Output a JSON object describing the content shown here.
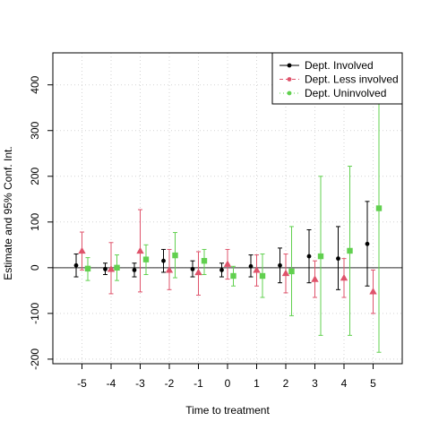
{
  "chart_data": {
    "type": "scatter",
    "title": "",
    "xlabel": "Time to treatment",
    "ylabel": "Estimate and 95% Conf. Int.",
    "xlim": [
      -6,
      6
    ],
    "ylim": [
      -210,
      470
    ],
    "xticks": [
      -5,
      -4,
      -3,
      -2,
      -1,
      0,
      1,
      2,
      3,
      4,
      5
    ],
    "yticks": [
      -200,
      -100,
      0,
      100,
      200,
      300,
      400
    ],
    "grid": true,
    "reference_line": 0,
    "legend_position": "top-right",
    "series": [
      {
        "name": "Dept. Involved",
        "color": "#000000",
        "marker": "circle",
        "offset": -0.2,
        "points": [
          {
            "x": -5,
            "y": 5,
            "lo": -20,
            "hi": 30
          },
          {
            "x": -4,
            "y": -3,
            "lo": -15,
            "hi": 10
          },
          {
            "x": -3,
            "y": -5,
            "lo": -20,
            "hi": 10
          },
          {
            "x": -2,
            "y": 15,
            "lo": -10,
            "hi": 40
          },
          {
            "x": -1,
            "y": -3,
            "lo": -20,
            "hi": 15
          },
          {
            "x": 0,
            "y": -5,
            "lo": -20,
            "hi": 10
          },
          {
            "x": 1,
            "y": 3,
            "lo": -20,
            "hi": 28
          },
          {
            "x": 2,
            "y": 5,
            "lo": -33,
            "hi": 43
          },
          {
            "x": 3,
            "y": 25,
            "lo": -33,
            "hi": 83
          },
          {
            "x": 4,
            "y": 20,
            "lo": -48,
            "hi": 90
          },
          {
            "x": 5,
            "y": 52,
            "lo": -40,
            "hi": 145
          }
        ]
      },
      {
        "name": "Dept. Less involved",
        "color": "#df536b",
        "marker": "triangle",
        "offset": 0,
        "points": [
          {
            "x": -5,
            "y": 37,
            "lo": -5,
            "hi": 78
          },
          {
            "x": -4,
            "y": -3,
            "lo": -57,
            "hi": 55
          },
          {
            "x": -3,
            "y": 37,
            "lo": -53,
            "hi": 127
          },
          {
            "x": -2,
            "y": -5,
            "lo": -48,
            "hi": 40
          },
          {
            "x": -1,
            "y": -10,
            "lo": -60,
            "hi": 35
          },
          {
            "x": 0,
            "y": 8,
            "lo": -25,
            "hi": 40
          },
          {
            "x": 1,
            "y": -5,
            "lo": -40,
            "hi": 28
          },
          {
            "x": 2,
            "y": -12,
            "lo": -55,
            "hi": 30
          },
          {
            "x": 3,
            "y": -25,
            "lo": -65,
            "hi": 15
          },
          {
            "x": 4,
            "y": -22,
            "lo": -65,
            "hi": 20
          },
          {
            "x": 5,
            "y": -52,
            "lo": -100,
            "hi": -5
          }
        ]
      },
      {
        "name": "Dept. Uninvolved",
        "color": "#61d04f",
        "marker": "square",
        "offset": 0.2,
        "points": [
          {
            "x": -5,
            "y": -2,
            "lo": -28,
            "hi": 22
          },
          {
            "x": -4,
            "y": 0,
            "lo": -28,
            "hi": 28
          },
          {
            "x": -3,
            "y": 18,
            "lo": -15,
            "hi": 50
          },
          {
            "x": -2,
            "y": 27,
            "lo": -22,
            "hi": 77
          },
          {
            "x": -1,
            "y": 15,
            "lo": -15,
            "hi": 40
          },
          {
            "x": 0,
            "y": -18,
            "lo": -40,
            "hi": 3
          },
          {
            "x": 1,
            "y": -18,
            "lo": -65,
            "hi": 30
          },
          {
            "x": 2,
            "y": -8,
            "lo": -105,
            "hi": 90
          },
          {
            "x": 3,
            "y": 25,
            "lo": -148,
            "hi": 200
          },
          {
            "x": 4,
            "y": 37,
            "lo": -148,
            "hi": 222
          },
          {
            "x": 5,
            "y": 130,
            "lo": -185,
            "hi": 445
          }
        ]
      }
    ]
  }
}
